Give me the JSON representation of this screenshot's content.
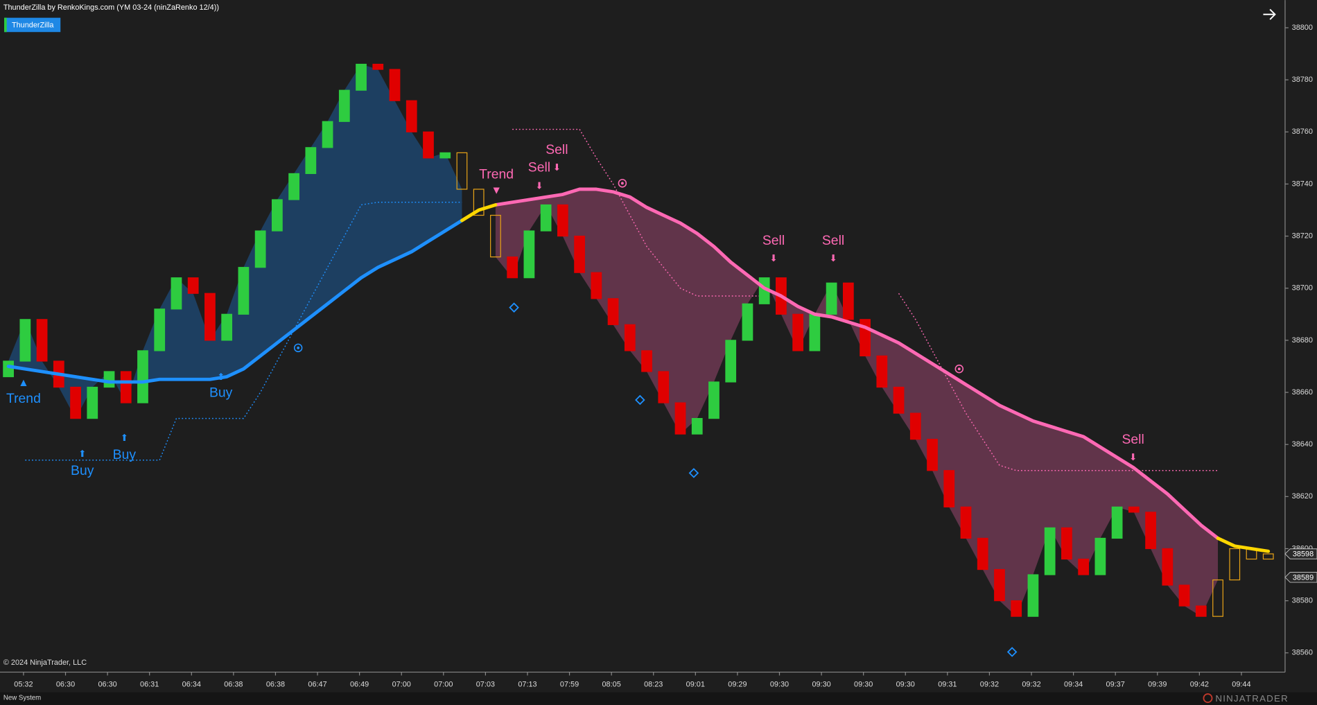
{
  "header": {
    "title": "ThunderZilla by RenkoKings.com (YM 03-24 (ninZaRenko 12/4))",
    "tab": "ThunderZilla"
  },
  "footer": {
    "copyright": "© 2024 NinjaTrader, LLC",
    "status_tab": "New System",
    "logo": "NINJATRADER"
  },
  "chart_data": {
    "type": "renko",
    "background": "#1e1e1e",
    "up_color": "#2ecc40",
    "down_color": "#e00000",
    "neutral_color": "#e8a317",
    "bricks": {
      "open": [
        38666,
        38672,
        38688,
        38672,
        38662,
        38650,
        38662,
        38668,
        38656,
        38676,
        38692,
        38704,
        38698,
        38680,
        38690,
        38708,
        38722,
        38734,
        38744,
        38754,
        38764,
        38776,
        38786,
        38784,
        38772,
        38760,
        38750,
        38752,
        38738,
        38728,
        38712,
        38704,
        38722,
        38732,
        38720,
        38706,
        38696,
        38686,
        38676,
        38668,
        38656,
        38644,
        38650,
        38664,
        38680,
        38694,
        38704,
        38690,
        38676,
        38690,
        38702,
        38688,
        38674,
        38662,
        38652,
        38642,
        38630,
        38616,
        38604,
        38592,
        38580,
        38574,
        38590,
        38608,
        38596,
        38590,
        38604,
        38616,
        38614,
        38600,
        38586,
        38578,
        38574,
        38588,
        38600,
        38596
      ],
      "close": [
        38672,
        38688,
        38672,
        38662,
        38650,
        38662,
        38668,
        38656,
        38676,
        38692,
        38704,
        38698,
        38680,
        38690,
        38708,
        38722,
        38734,
        38744,
        38754,
        38764,
        38776,
        38786,
        38784,
        38772,
        38760,
        38750,
        38752,
        38738,
        38728,
        38712,
        38704,
        38722,
        38732,
        38720,
        38706,
        38696,
        38686,
        38676,
        38668,
        38656,
        38644,
        38650,
        38664,
        38680,
        38694,
        38704,
        38690,
        38676,
        38690,
        38702,
        38688,
        38674,
        38662,
        38652,
        38642,
        38630,
        38616,
        38604,
        38592,
        38580,
        38574,
        38590,
        38608,
        38596,
        38590,
        38604,
        38616,
        38614,
        38600,
        38586,
        38578,
        38574,
        38588,
        38600,
        38596,
        38598
      ]
    },
    "series": [
      {
        "color": "#1e90ff",
        "values": [
          38670,
          38669,
          38668,
          38667,
          38666,
          38665,
          38664,
          38664,
          38664,
          38665,
          38665,
          38665,
          38665,
          38666,
          38669,
          38674,
          38679,
          38684,
          38689,
          38694,
          38699,
          38704,
          38708,
          38711,
          38714,
          38718,
          38722,
          38726,
          null,
          null,
          null,
          null,
          null,
          null,
          null,
          null,
          null,
          null,
          null,
          null,
          null,
          null,
          null,
          null,
          null,
          null,
          null,
          null,
          null,
          null,
          null,
          null,
          null,
          null,
          null,
          null,
          null,
          null,
          null,
          null,
          null,
          null,
          null,
          null,
          null,
          null,
          null,
          null,
          null,
          null,
          null,
          null,
          null,
          null,
          null,
          null
        ]
      },
      {
        "color": "#ff69b4",
        "values": [
          null,
          null,
          null,
          null,
          null,
          null,
          null,
          null,
          null,
          null,
          null,
          null,
          null,
          null,
          null,
          null,
          null,
          null,
          null,
          null,
          null,
          null,
          null,
          null,
          null,
          null,
          null,
          null,
          null,
          38732,
          38733,
          38734,
          38735,
          38736,
          38738,
          38738,
          38737,
          38735,
          38731,
          38728,
          38725,
          38721,
          38716,
          38710,
          38705,
          38700,
          38697,
          38693,
          38690,
          38689,
          38687,
          38685,
          38682,
          38679,
          38675,
          38671,
          38667,
          38663,
          38659,
          38655,
          38652,
          38649,
          38647,
          38645,
          38643,
          38639,
          38635,
          38631,
          38626,
          38621,
          38615,
          38609,
          38604,
          null,
          null,
          null
        ]
      },
      {
        "color": "#ffd700",
        "values": [
          null,
          null,
          null,
          null,
          null,
          null,
          null,
          null,
          null,
          null,
          null,
          null,
          null,
          null,
          null,
          null,
          null,
          null,
          null,
          null,
          null,
          null,
          null,
          null,
          null,
          null,
          null,
          38726,
          38730,
          38732,
          null,
          null,
          null,
          null,
          null,
          null,
          null,
          null,
          null,
          null,
          null,
          null,
          null,
          null,
          null,
          null,
          null,
          null,
          null,
          null,
          null,
          null,
          null,
          null,
          null,
          null,
          null,
          null,
          null,
          null,
          null,
          null,
          null,
          null,
          null,
          null,
          null,
          null,
          null,
          null,
          null,
          null,
          38604,
          38601,
          38600,
          38599
        ]
      }
    ],
    "stops": [
      {
        "color": "#1e90ff",
        "values": [
          null,
          38634,
          38634,
          38634,
          38634,
          38634,
          38634,
          38634,
          38634,
          38634,
          38650,
          38650,
          38650,
          38650,
          38650,
          38660,
          38672,
          38684,
          38696,
          38708,
          38720,
          38732,
          38733,
          38733,
          38733,
          38733,
          38733,
          38733,
          null,
          null,
          null,
          null,
          null,
          null,
          null,
          null,
          null,
          null,
          null,
          null,
          null,
          null,
          null,
          null,
          null,
          null,
          null,
          null,
          null,
          null,
          null,
          null,
          null,
          null,
          null,
          null,
          null,
          null,
          null,
          null,
          null,
          null,
          null,
          null,
          null,
          null,
          null,
          null,
          null,
          null,
          null,
          null,
          null,
          null,
          null,
          null
        ]
      },
      {
        "color": "#ff69b4",
        "values": [
          null,
          null,
          null,
          null,
          null,
          null,
          null,
          null,
          null,
          null,
          null,
          null,
          null,
          null,
          null,
          null,
          null,
          null,
          null,
          null,
          null,
          null,
          null,
          null,
          null,
          null,
          null,
          null,
          null,
          null,
          38761,
          38761,
          38761,
          38761,
          38761,
          38750,
          38740,
          38728,
          38716,
          38708,
          38700,
          38697,
          38697,
          38697,
          38697,
          38697,
          null,
          null,
          null,
          null,
          null,
          null,
          null,
          38698,
          38688,
          38676,
          38664,
          38652,
          38642,
          38632,
          38630,
          38630,
          38630,
          38630,
          38630,
          38630,
          38630,
          38630,
          38630,
          38630,
          38630,
          38630,
          38630,
          null,
          null,
          null
        ]
      }
    ],
    "annotations": [
      "Trend",
      "Buy",
      "Buy",
      "Buy",
      "Trend",
      "Sell",
      "Sell",
      "Sell",
      "Sell",
      "Sell"
    ],
    "price_markers": [
      38598,
      38589
    ],
    "xlim": [
      -0.5,
      76
    ],
    "xticks": [
      {
        "value": 0.9,
        "label": "05:32"
      },
      {
        "value": 3.4,
        "label": "06:30"
      },
      {
        "value": 5.9,
        "label": "06:30"
      },
      {
        "value": 8.4,
        "label": "06:31"
      },
      {
        "value": 10.9,
        "label": "06:34"
      },
      {
        "value": 13.4,
        "label": "06:38"
      },
      {
        "value": 15.9,
        "label": "06:38"
      },
      {
        "value": 18.4,
        "label": "06:47"
      },
      {
        "value": 20.9,
        "label": "06:49"
      },
      {
        "value": 23.4,
        "label": "07:00"
      },
      {
        "value": 25.9,
        "label": "07:00"
      },
      {
        "value": 28.4,
        "label": "07:03"
      },
      {
        "value": 30.9,
        "label": "07:13"
      },
      {
        "value": 33.4,
        "label": "07:59"
      },
      {
        "value": 35.9,
        "label": "08:05"
      },
      {
        "value": 38.4,
        "label": "08:23"
      },
      {
        "value": 40.9,
        "label": "09:01"
      },
      {
        "value": 43.4,
        "label": "09:29"
      },
      {
        "value": 45.9,
        "label": "09:30"
      },
      {
        "value": 48.4,
        "label": "09:30"
      },
      {
        "value": 50.9,
        "label": "09:30"
      },
      {
        "value": 53.4,
        "label": "09:30"
      },
      {
        "value": 55.9,
        "label": "09:31"
      },
      {
        "value": 58.4,
        "label": "09:32"
      },
      {
        "value": 60.9,
        "label": "09:32"
      },
      {
        "value": 63.4,
        "label": "09:34"
      },
      {
        "value": 65.9,
        "label": "09:37"
      },
      {
        "value": 68.4,
        "label": "09:39"
      },
      {
        "value": 70.9,
        "label": "09:42"
      },
      {
        "value": 73.4,
        "label": "09:44"
      }
    ],
    "ylim": [
      38552.6,
      38810.6
    ],
    "yticks": [
      38560,
      38580,
      38600,
      38620,
      38640,
      38660,
      38680,
      38700,
      38720,
      38740,
      38760,
      38780,
      38800
    ]
  }
}
